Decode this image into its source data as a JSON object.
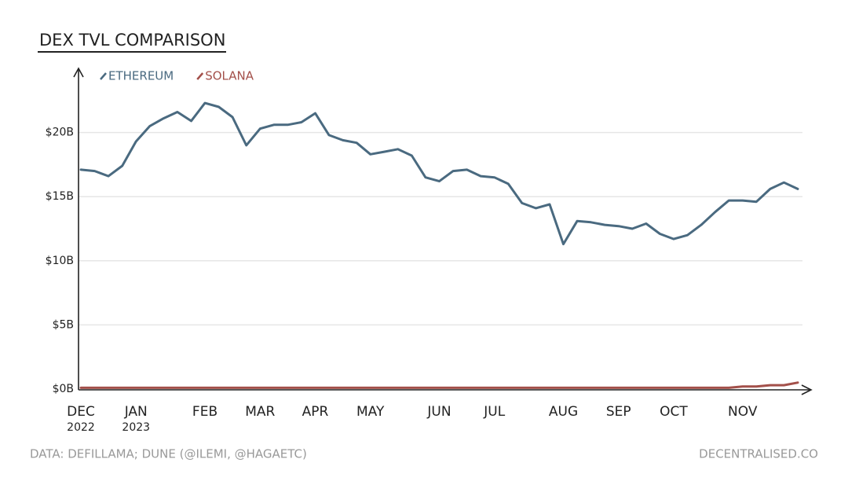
{
  "chart_data": {
    "type": "line",
    "title": "DEX TVL COMPARISON",
    "source": "DATA: DEFILLAMA; DUNE (@ILEMI, @HAGAETC)",
    "credit": "DECENTRALISED.CO",
    "categories": [
      "DEC 2022",
      null,
      null,
      null,
      "JAN 2023",
      null,
      null,
      null,
      null,
      "FEB",
      null,
      null,
      null,
      "MAR",
      null,
      null,
      null,
      "APR",
      null,
      null,
      null,
      "MAY",
      null,
      null,
      null,
      null,
      "JUN",
      null,
      null,
      null,
      "JUL",
      null,
      null,
      null,
      null,
      "AUG",
      null,
      null,
      null,
      "SEP",
      null,
      null,
      null,
      "OCT",
      null,
      null,
      null,
      null,
      "NOV",
      null,
      null,
      null,
      null
    ],
    "series": [
      {
        "name": "ETHEREUM",
        "color": "#4a6a80",
        "values": [
          17.1,
          17.0,
          16.6,
          17.4,
          19.3,
          20.5,
          21.1,
          21.6,
          20.9,
          22.3,
          22.0,
          21.2,
          19.0,
          20.3,
          20.6,
          20.6,
          20.8,
          21.5,
          19.8,
          19.4,
          19.2,
          18.3,
          18.5,
          18.7,
          18.2,
          16.5,
          16.2,
          17.0,
          17.1,
          16.6,
          16.5,
          16.0,
          14.5,
          14.1,
          14.4,
          11.3,
          13.1,
          13.0,
          12.8,
          12.7,
          12.5,
          12.9,
          12.1,
          11.7,
          12.0,
          12.8,
          13.8,
          14.7,
          14.7,
          14.6,
          15.6,
          16.1,
          15.6
        ]
      },
      {
        "name": "SOLANA",
        "color": "#a3504a",
        "values": [
          0.1,
          0.1,
          0.1,
          0.1,
          0.1,
          0.1,
          0.1,
          0.1,
          0.1,
          0.1,
          0.1,
          0.1,
          0.1,
          0.1,
          0.1,
          0.1,
          0.1,
          0.1,
          0.1,
          0.1,
          0.1,
          0.1,
          0.1,
          0.1,
          0.1,
          0.1,
          0.1,
          0.1,
          0.1,
          0.1,
          0.1,
          0.1,
          0.1,
          0.1,
          0.1,
          0.1,
          0.1,
          0.1,
          0.1,
          0.1,
          0.1,
          0.1,
          0.1,
          0.1,
          0.1,
          0.1,
          0.1,
          0.1,
          0.2,
          0.2,
          0.3,
          0.3,
          0.5
        ]
      }
    ],
    "ylim": [
      0,
      25
    ],
    "yticks": [
      {
        "value": 0,
        "label": "$0B"
      },
      {
        "value": 5,
        "label": "$5B"
      },
      {
        "value": 10,
        "label": "$10B"
      },
      {
        "value": 15,
        "label": "$15B"
      },
      {
        "value": 20,
        "label": "$20B"
      }
    ],
    "grid": true
  }
}
